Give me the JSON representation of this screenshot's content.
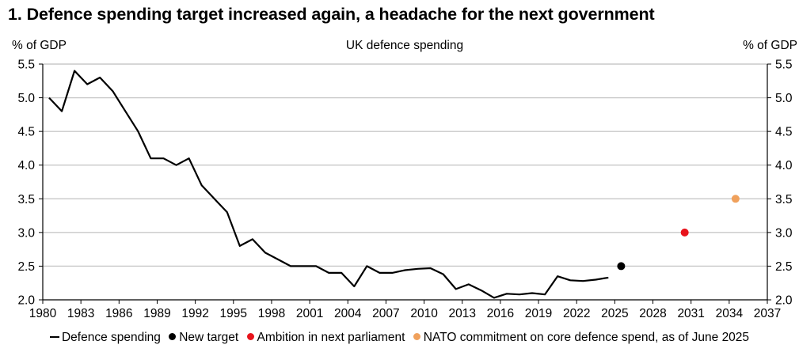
{
  "figure": {
    "title": "1. Defence spending target increased again, a headache for the next government"
  },
  "chart_data": {
    "type": "line",
    "title": "UK defence spending",
    "ylabel_left": "% of GDP",
    "ylabel_right": "% of GDP",
    "xlim": [
      1980,
      2037
    ],
    "ylim": [
      2.0,
      5.5
    ],
    "x_ticks": [
      1980,
      1983,
      1986,
      1989,
      1992,
      1995,
      1998,
      2001,
      2004,
      2007,
      2010,
      2013,
      2016,
      2019,
      2022,
      2025,
      2028,
      2031,
      2034,
      2037
    ],
    "y_ticks": [
      "2.0",
      "2.5",
      "3.0",
      "3.5",
      "4.0",
      "4.5",
      "5.0",
      "5.5"
    ],
    "grid": "horizontal",
    "legend_position": "bottom",
    "series": [
      {
        "name": "Defence spending",
        "kind": "line",
        "color": "#000000",
        "x": [
          1980.5,
          1981.5,
          1982.5,
          1983.5,
          1984.5,
          1985.5,
          1986.5,
          1987.5,
          1988.5,
          1989.5,
          1990.5,
          1991.5,
          1992.5,
          1993.5,
          1994.5,
          1995.5,
          1996.5,
          1997.5,
          1998.5,
          1999.5,
          2000.5,
          2001.5,
          2002.5,
          2003.5,
          2004.5,
          2005.5,
          2006.5,
          2007.5,
          2008.5,
          2009.5,
          2010.5,
          2011.5,
          2012.5,
          2013.5,
          2014.5,
          2015.5,
          2016.5,
          2017.5,
          2018.5,
          2019.5,
          2020.5,
          2021.5,
          2022.5,
          2023.5,
          2024.5
        ],
        "y": [
          5.0,
          4.8,
          5.4,
          5.2,
          5.3,
          5.1,
          4.8,
          4.5,
          4.1,
          4.1,
          4.0,
          4.1,
          3.7,
          3.5,
          3.3,
          2.8,
          2.9,
          2.7,
          2.6,
          2.5,
          2.5,
          2.5,
          2.4,
          2.4,
          2.2,
          2.5,
          2.4,
          2.4,
          2.44,
          2.46,
          2.47,
          2.38,
          2.16,
          2.23,
          2.14,
          2.03,
          2.09,
          2.08,
          2.1,
          2.08,
          2.35,
          2.29,
          2.28,
          2.3,
          2.33
        ]
      },
      {
        "name": "New target",
        "kind": "point",
        "color": "#000000",
        "x": [
          2025.5
        ],
        "y": [
          2.5
        ]
      },
      {
        "name": "Ambition in next parliament",
        "kind": "point",
        "color": "#e8141c",
        "x": [
          2030.5
        ],
        "y": [
          3.0
        ]
      },
      {
        "name": "NATO commitment on core defence spend, as of June 2025",
        "kind": "point",
        "color": "#f0a15c",
        "x": [
          2034.5
        ],
        "y": [
          3.5
        ]
      }
    ]
  }
}
